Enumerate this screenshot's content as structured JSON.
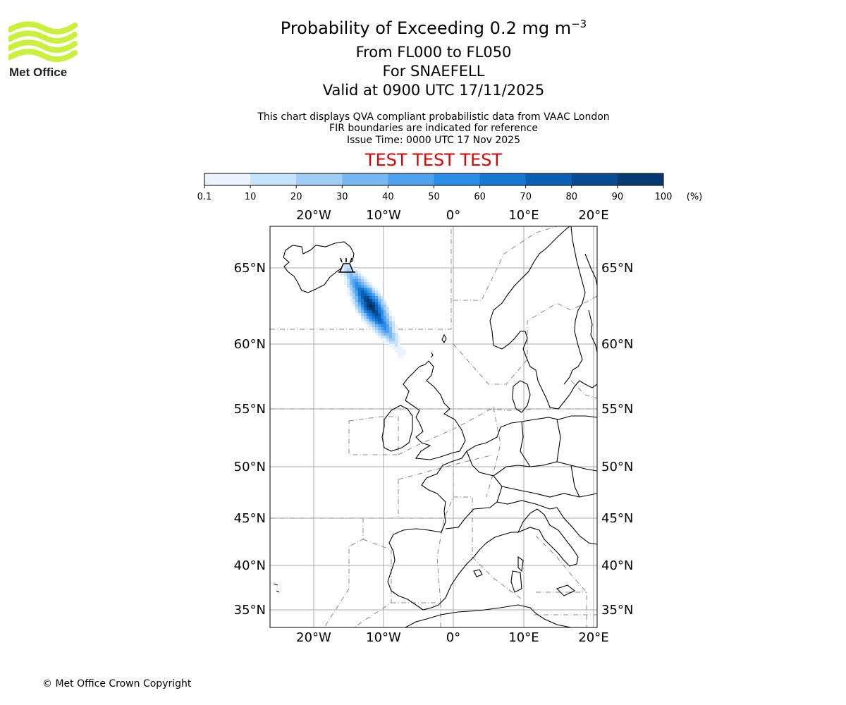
{
  "header": {
    "title_prefix": "Probability of Exceeding 0.2 mg m",
    "title_exponent": "−3",
    "subtitle_levels": "From FL000 to FL050",
    "subtitle_volcano": "For SNAEFELL",
    "subtitle_valid": "Valid at 0900 UTC 17/11/2025",
    "info_line1": "This chart displays QVA compliant probabilistic data from VAAC London",
    "info_line2": "FIR boundaries are indicated for reference",
    "info_line3": "Issue Time: 0000 UTC 17 Nov 2025",
    "test_banner": "TEST TEST TEST",
    "test_color": "#e00000"
  },
  "logo": {
    "text": "Met Office",
    "wave_color": "#c8f03c"
  },
  "colorbar": {
    "ticks": [
      "0.1",
      "10",
      "20",
      "30",
      "40",
      "50",
      "60",
      "70",
      "80",
      "90",
      "100"
    ],
    "unit": "(%)",
    "colors": [
      "#eaf3fd",
      "#c6e1fa",
      "#9fcdf6",
      "#77b8f2",
      "#4fa3ee",
      "#2a8de8",
      "#1676d2",
      "#0b5fb4",
      "#084b92",
      "#063a72",
      "#042a52"
    ]
  },
  "map": {
    "lon_labels": [
      "20°W",
      "10°W",
      "0°",
      "10°E",
      "20°E"
    ],
    "lat_labels": [
      "65°N",
      "60°N",
      "55°N",
      "50°N",
      "45°N",
      "40°N",
      "35°N"
    ]
  },
  "footer": {
    "copyright": "© Met Office Crown Copyright"
  },
  "colors": {
    "grid": "#a8a8a8",
    "coast": "#000000",
    "fir": "#888888"
  }
}
